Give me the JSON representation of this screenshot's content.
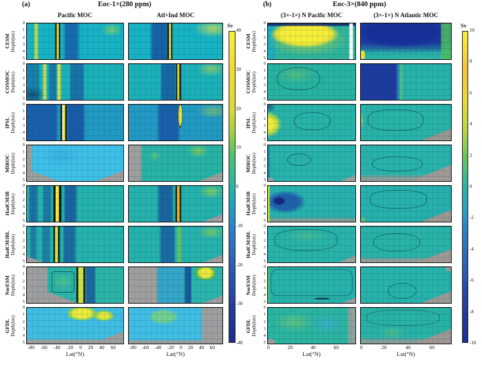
{
  "figure": {
    "panel_a_tag": "(a)",
    "panel_b_tag": "(b)",
    "title_a": "Eoc-1×(280 ppm)",
    "title_b": "Eoc-3×(840 ppm)",
    "col_titles_a": [
      "Pacific MOC",
      "Atl+Ind MOC"
    ],
    "col_titles_b": [
      "(3×-1×) N Pacific MOC",
      "(3×-1×) N Atlantic MOC"
    ],
    "models": [
      "CESM",
      "COSMOC",
      "IPSL",
      "MIROC",
      "HadCM3B",
      "HadCM3BL",
      "NorESM",
      "GFDL"
    ],
    "ylabel": "Depth(km)",
    "xlabel": "Lat(°N)",
    "yticks": [
      "0",
      "1",
      "2",
      "3",
      "4",
      "5"
    ],
    "xticks_a": [
      "-80",
      "-60",
      "-40",
      "-20",
      "0",
      "20",
      "40",
      "60"
    ],
    "xticks_b": [
      "0",
      "20",
      "40",
      "60"
    ],
    "colorbar_a": {
      "label": "Sv",
      "ticks": [
        "40",
        "30",
        "20",
        "10",
        "0",
        "-10",
        "-20",
        "-30",
        "-40"
      ]
    },
    "colorbar_b": {
      "label": "Sv",
      "ticks": [
        "10",
        "8",
        "6",
        "4",
        "2",
        "0",
        "-2",
        "-4",
        "-6",
        "-8",
        "-10"
      ]
    }
  },
  "chart_data": {
    "type": "heatmap",
    "subtype": "filled-contour-sections",
    "units": "Sv",
    "title": "Meridional overturning circulation (MOC) streamfunction sections for 8 climate models",
    "layout": {
      "rows": [
        "CESM",
        "COSMOC",
        "IPSL",
        "MIROC",
        "HadCM3B",
        "HadCM3BL",
        "NorESM",
        "GFDL"
      ],
      "x_label": "Lat(°N)",
      "y_label": "Depth(km)",
      "depth_range_km": [
        0,
        5
      ],
      "y_inverted": true,
      "grid": true,
      "groups": [
        {
          "id": "a",
          "title": "Eoc-1×(280 ppm)",
          "columns": [
            "Pacific MOC",
            "Atl+Ind MOC"
          ],
          "lat_range": [
            -85,
            72
          ],
          "lat_ticks": [
            -80,
            -60,
            -40,
            -20,
            0,
            20,
            40,
            60
          ],
          "colorbar": {
            "label": "Sv",
            "min": -40,
            "max": 40,
            "tick_step": 10
          }
        },
        {
          "id": "b",
          "title": "Eoc-3×(840 ppm)",
          "columns": [
            "(3×-1×) N Pacific MOC",
            "(3×-1×) N Atlantic MOC"
          ],
          "lat_range": [
            0,
            75
          ],
          "lat_ticks": [
            0,
            20,
            40,
            60
          ],
          "colorbar": {
            "label": "Sv",
            "min": -10,
            "max": 10,
            "tick_step": 2
          }
        }
      ]
    },
    "panel_summaries": {
      "CESM": {
        "a_pacific": "Teal background ~0-5 Sv; narrow positive cells ~+20 Sv near 70°S and ~+35 Sv near 35°S; deep negative cell -15 to -25 Sv between 30°S and 5°N; weak positive patch ~+10 Sv near 50-70°N surface.",
        "a_atlind": "Deep negative cell -20 Sv between 40°S and 5°S with narrow +30 Sv column near 0°; broad positive ~+10-15 Sv upper ocean 20-70°N.",
        "b_npacific": "Strong positive anomaly +8 to +10 Sv over most of 5-60°N, 0-4 km; thin negative strip at surface; near-zero at edges.",
        "b_natlantic": "Strong negative anomaly -8 to -10 Sv over 0-60°N upper 3.5 km; weak positive band east of 65°N and below 4 km."
      },
      "COSMOC": {
        "a_pacific": "Negative dashed cells -10 to -20 Sv from 80°S to 0°; positive columns ~+20 Sv near 55°S and 30°S; teal elsewhere.",
        "a_atlind": "Negative cell -15 Sv 30°S-0°; strong +30 Sv narrow column near 10°N; positive patch north of 40°N.",
        "b_npacific": "Weak positive anomaly +1 to +3 Sv, small green patch 10-30°N upper 2 km.",
        "b_natlantic": "Strong negative block -9 Sv from 0-30°N full depth; near-zero 30-75°N."
      },
      "IPSL": {
        "a_pacific": "Broad negative -20 Sv south of 30°S; intense narrow positive column >+35 Sv near 20°S; negative cell -20 Sv 10°S-20°N.",
        "a_atlind": "Negative dashed cell -15 Sv 30°S-5°N; short positive column +15 Sv near 10°N; weak positive north of 30°N.",
        "b_npacific": "Positive anomaly +6 to +9 Sv hugging 0-8°N at 1-3 km depth; near-zero elsewhere with closed contour mid-basin.",
        "b_natlantic": "Near-zero anomaly with weak contours; bathymetry mask in lower right; slight positive at western edge."
      },
      "MIROC": {
        "a_pacific": "Weak negative -5 Sv light-blue interior 60°S-40°N; gray bathymetry masks at southern and northern deep corners.",
        "a_atlind": "Gray mask south of 40°S; weak positive +5 to +10 Sv green contours 30-70°N upper 1.5 km.",
        "b_npacific": "Near-zero anomaly, closed contours around ±1 Sv; gray masks lower corners.",
        "b_natlantic": "Near-zero anomaly; large gray bathymetry mask lower right."
      },
      "HadCM3B": {
        "a_pacific": "Negative dashed cells -15 Sv 70-30°S; very strong narrow positive column >+35 Sv (black-bounded yellow) near 25°S; negative cell -15 Sv 0-20°N.",
        "a_atlind": "Negative cell -15 Sv 30°S-0°; strong +25 Sv column near 10°N ringed by black contours; positive +10 Sv 40-70°N; gray mask lower right.",
        "b_npacific": "Negative anomaly -4 to -8 Sv blob 5-30°N, 0.5-3.5 km with core near -8 Sv; thin positive strip at 0°N; gray shelf along bottom.",
        "b_natlantic": "Weak anomalies ±2 Sv with wandering contours; gray mask lower right."
      },
      "HadCM3BL": {
        "a_pacific": "Similar to HadCM3B but weaker: positive column ~+25 Sv near 25°S, negative cells -10 Sv both sides; gray mask deep southwest.",
        "a_atlind": "Negative cell -10 Sv 30°S-0°, positive column +15 Sv near 10°N, positive patch 40-70°N; gray mask lower right.",
        "b_npacific": "Near-zero anomaly with one large closed contour in upper basin; gray mask lower right corner.",
        "b_natlantic": "Near-zero anomaly, several closed contours; gray mask lower right."
      },
      "NorESM": {
        "a_pacific": "Gray mask west of 40°S; positive column +20 Sv (dotted black edges) near 5°N; negative band -10 Sv 10-25°N; closed contours mid-depth.",
        "a_atlind": "Gray mask south of 30°S; light-blue weak negative centre; dotted negative column near 15°N; positive cell +20 Sv 30-55°N upper 1.5 km; gray lower right.",
        "b_npacific": "Anomaly near zero enclosed by a single large contour; dark negative sliver at 4 km near 40°N; gray lower-right corner.",
        "b_natlantic": "Near-zero anomaly with closed oval contour at depth 20-40°N; gray mask lower right."
      },
      "GFDL": {
        "a_pacific": "Light-blue weak negative background; positive cell +20 to +30 Sv centred 10-45°N upper 2 km with nested contours; gray bathymetry along bottom and lower right.",
        "a_atlind": "Light-blue background; moderate positive cell +10 to +15 Sv 20°S-10°N upper 2 km; gray mask east of 40°N and along bottom.",
        "b_npacific": "Weak positive anomaly +1 to +2 Sv west-centre, weak negative -1 to -2 Sv 40-60°N; gray strip at eastern edge.",
        "b_natlantic": "Near-zero anomaly with broad closed contours; gray mask along bottom and lower right."
      }
    }
  }
}
